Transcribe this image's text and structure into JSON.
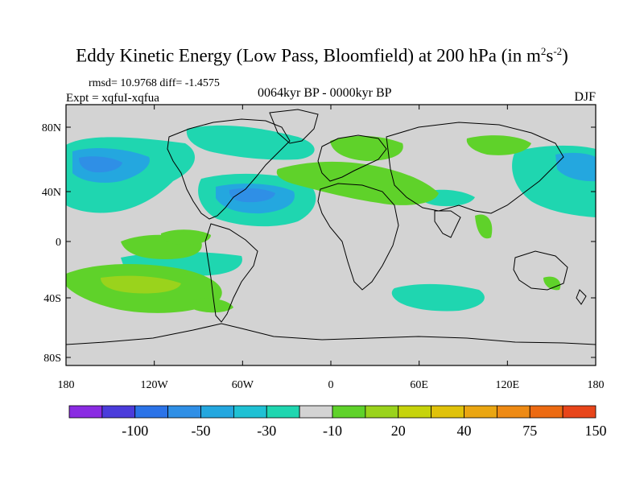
{
  "title_main": "Eddy Kinetic Energy (Low Pass, Bloomfield) at 200 hPa (in m",
  "title_unit_sup1": "2",
  "title_unit_mid": "s",
  "title_unit_sup2": "-2",
  "title_unit_end": ")",
  "stats": "rmsd= 10.9768 diff= -1.4575",
  "expt": "Expt = xqfuI-xqfua",
  "period": "0064kyr BP - 0000kyr BP",
  "season": "DJF",
  "map": {
    "lat_ticks": [
      "80N",
      "40N",
      "0",
      "40S",
      "80S"
    ],
    "lon_ticks": [
      "180",
      "120W",
      "60W",
      "0",
      "60E",
      "120E",
      "180"
    ],
    "background_color": "#d3d3d3"
  },
  "colorbar": {
    "colors": [
      "#8a2be2",
      "#4b3cdb",
      "#2b73e8",
      "#2f8fe6",
      "#24a7df",
      "#1fc1d4",
      "#1fd6b0",
      "#d3d3d3",
      "#5fd22a",
      "#9ad31c",
      "#c6d30c",
      "#e0c20a",
      "#eaa612",
      "#ee8a14",
      "#ec6a12",
      "#e8451a"
    ],
    "labels": [
      "-100",
      "-50",
      "-30",
      "-10",
      "20",
      "40",
      "75",
      "150"
    ]
  }
}
